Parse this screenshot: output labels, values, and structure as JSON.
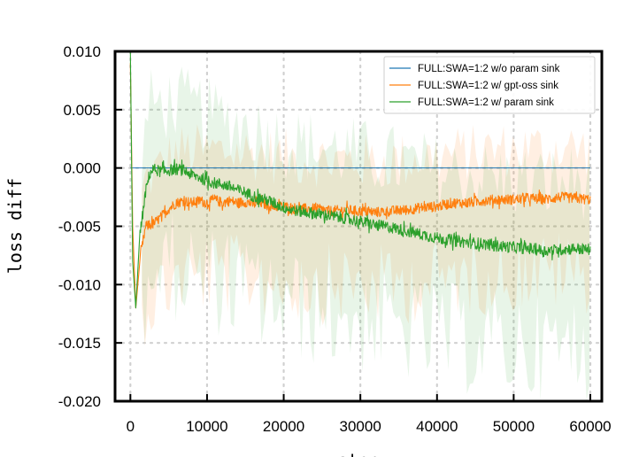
{
  "chart_data": {
    "type": "line",
    "title": "",
    "xlabel": "step",
    "ylabel": "loss diff",
    "xlim": [
      -2000,
      61500
    ],
    "ylim": [
      -0.02,
      0.01
    ],
    "xticks": [
      0,
      10000,
      20000,
      30000,
      40000,
      50000,
      60000
    ],
    "xtick_labels": [
      "0",
      "10000",
      "20000",
      "30000",
      "40000",
      "50000",
      "60000"
    ],
    "yticks": [
      0.01,
      0.005,
      0.0,
      -0.005,
      -0.01,
      -0.015,
      -0.02
    ],
    "ytick_labels": [
      "0.010",
      "0.005",
      "0.000",
      "-0.005",
      "-0.010",
      "-0.015",
      "-0.020"
    ],
    "grid": "dotted",
    "legend_position": "top-right",
    "series": [
      {
        "name": "FULL:SWA=1:2 w/o param sink",
        "color": "#1f77b4",
        "x": [
          0,
          60000
        ],
        "y": [
          0.0,
          0.0
        ]
      },
      {
        "name": "FULL:SWA=1:2 w/ gpt-oss sink",
        "color": "#ff7f0e",
        "x": [
          0,
          300,
          700,
          1200,
          2000,
          3000,
          4000,
          5000,
          6000,
          7000,
          8000,
          9000,
          10000,
          11000,
          12000,
          13000,
          14000,
          15000,
          16000,
          17000,
          18000,
          19000,
          20000,
          22000,
          24000,
          26000,
          28000,
          30000,
          32000,
          34000,
          36000,
          38000,
          40000,
          42000,
          44000,
          46000,
          48000,
          50000,
          52000,
          54000,
          56000,
          58000,
          60000
        ],
        "y": [
          0.009,
          -0.005,
          -0.012,
          -0.008,
          -0.005,
          -0.0048,
          -0.0042,
          -0.0035,
          -0.003,
          -0.0028,
          -0.003,
          -0.0028,
          -0.003,
          -0.0027,
          -0.003,
          -0.0028,
          -0.003,
          -0.0029,
          -0.0031,
          -0.003,
          -0.0032,
          -0.0033,
          -0.0033,
          -0.0035,
          -0.0035,
          -0.0037,
          -0.0036,
          -0.0037,
          -0.0038,
          -0.0037,
          -0.0036,
          -0.0034,
          -0.0033,
          -0.003,
          -0.003,
          -0.0028,
          -0.0027,
          -0.0027,
          -0.0026,
          -0.0027,
          -0.0025,
          -0.0026,
          -0.0027
        ]
      },
      {
        "name": "FULL:SWA=1:2 w/ param sink",
        "color": "#2ca02c",
        "x": [
          0,
          300,
          700,
          1200,
          2000,
          2500,
          3000,
          4000,
          5000,
          6000,
          7000,
          8000,
          9000,
          10000,
          11000,
          12000,
          13000,
          14000,
          15000,
          16000,
          17000,
          18000,
          19000,
          20000,
          22000,
          24000,
          26000,
          28000,
          30000,
          32000,
          34000,
          36000,
          38000,
          40000,
          42000,
          44000,
          46000,
          48000,
          50000,
          52000,
          54000,
          56000,
          58000,
          60000
        ],
        "y": [
          0.01,
          -0.008,
          -0.012,
          -0.006,
          -0.002,
          -0.0005,
          -0.0001,
          -0.0003,
          -0.0002,
          -0.0001,
          -0.0002,
          -0.0006,
          -0.0008,
          -0.0011,
          -0.0013,
          -0.0014,
          -0.0016,
          -0.0019,
          -0.0021,
          -0.0024,
          -0.0026,
          -0.0028,
          -0.0031,
          -0.0034,
          -0.0037,
          -0.0039,
          -0.0041,
          -0.0043,
          -0.0046,
          -0.0049,
          -0.0051,
          -0.0054,
          -0.0057,
          -0.006,
          -0.0062,
          -0.0064,
          -0.0065,
          -0.0067,
          -0.0068,
          -0.0069,
          -0.0071,
          -0.007,
          -0.0069,
          -0.007
        ]
      }
    ]
  }
}
